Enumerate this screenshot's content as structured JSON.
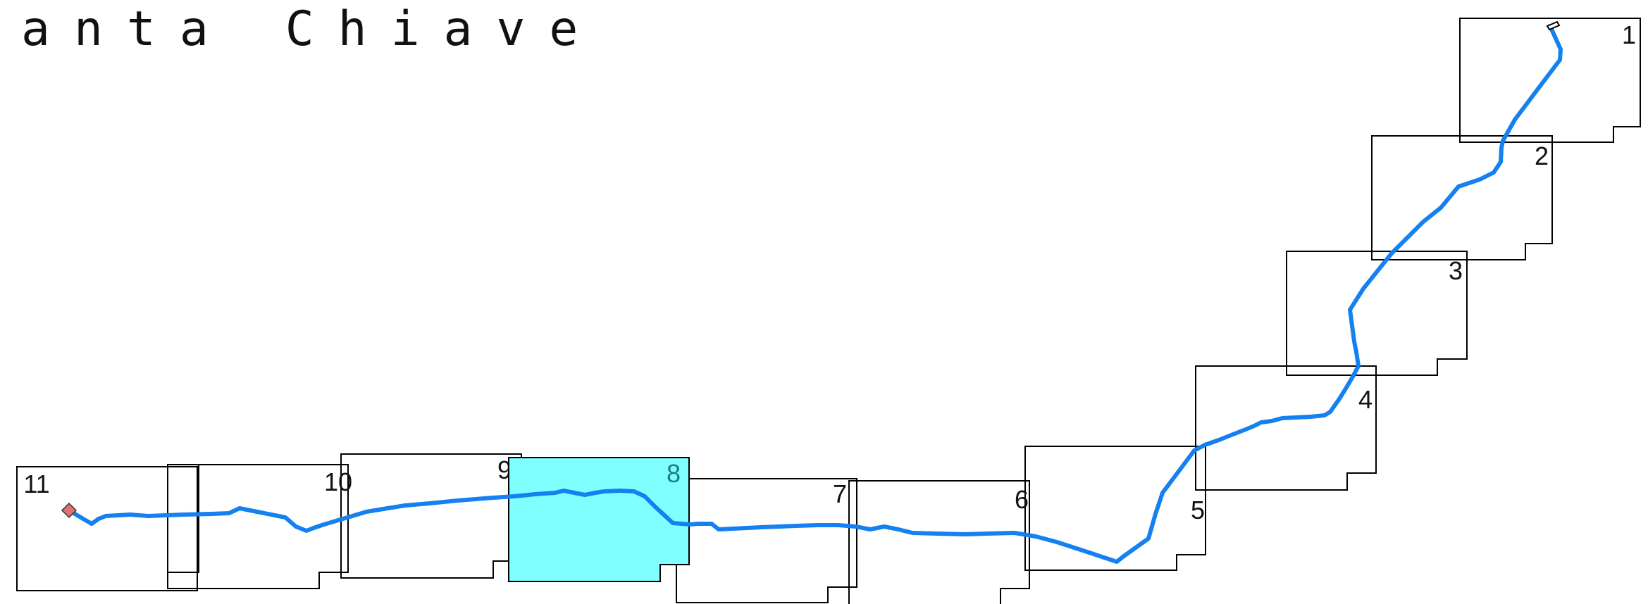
{
  "title": "anta Chiave",
  "colors": {
    "route": "#1580f0",
    "highlight_fill": "#7fffff",
    "highlight_label": "#1a7f7f",
    "frame_stroke": "#000000",
    "end_marker": "#e07070"
  },
  "frames": [
    {
      "label": "1",
      "highlighted": false
    },
    {
      "label": "2",
      "highlighted": false
    },
    {
      "label": "3",
      "highlighted": false
    },
    {
      "label": "4",
      "highlighted": false
    },
    {
      "label": "5",
      "highlighted": false
    },
    {
      "label": "6",
      "highlighted": false
    },
    {
      "label": "7",
      "highlighted": false
    },
    {
      "label": "8",
      "highlighted": true
    },
    {
      "label": "9",
      "highlighted": false
    },
    {
      "label": "10",
      "highlighted": false
    },
    {
      "label": "11",
      "highlighted": false
    }
  ],
  "markers": {
    "start": "start-marker",
    "end": "end-marker"
  }
}
